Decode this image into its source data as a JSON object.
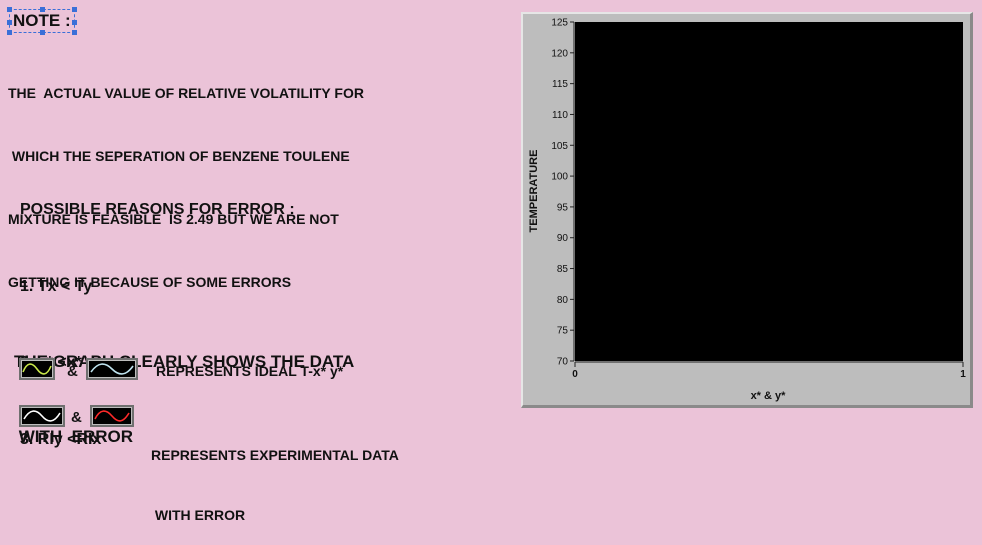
{
  "note": {
    "title": "NOTE :",
    "lines": [
      "THE  ACTUAL VALUE OF RELATIVE VOLATILITY FOR",
      " WHICH THE SEPERATION OF BENZENE TOULENE",
      "MIXTURE IS FEASIBLE  IS 2.49 BUT WE ARE NOT",
      "GETTING IT BECAUSE OF SOME ERRORS"
    ]
  },
  "reasons": {
    "heading": "POSSIBLE REASONS FOR ERROR :",
    "items": [
      "1. Tx < Ty",
      "2. y* <x*",
      "3. RIy <RIx"
    ]
  },
  "graph_note": {
    "line1": "THE GRAPH CLEARLY SHOWS THE DATA",
    "line2": " WITH  ERROR"
  },
  "legend": {
    "ideal": {
      "amp": "&",
      "label": "REPRESENTS IDEAL T-x* y*",
      "colors": [
        "#c8e64a",
        "#bfe3ef"
      ]
    },
    "experimental": {
      "amp": "&",
      "label_line1": "REPRESENTS EXPERIMENTAL DATA",
      "label_line2": " WITH ERROR",
      "colors": [
        "#ffffff",
        "#ff2a2a"
      ]
    }
  },
  "chart_data": {
    "type": "line",
    "title": "",
    "xlabel": "x* & y*",
    "ylabel": "TEMPERATURE",
    "xlim": [
      0,
      1
    ],
    "ylim": [
      70,
      125
    ],
    "x_ticks": [
      "0",
      "1"
    ],
    "y_ticks": [
      70,
      75,
      80,
      85,
      90,
      95,
      100,
      105,
      110,
      115,
      120,
      125
    ],
    "plot_background": "#000000",
    "series": []
  }
}
